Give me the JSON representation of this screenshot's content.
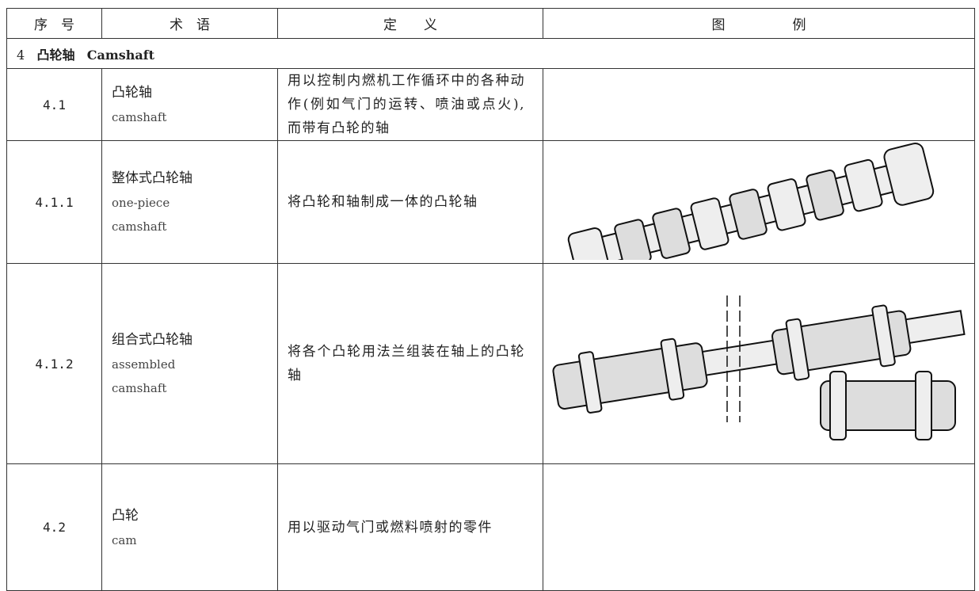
{
  "table": {
    "header": [
      "序　号",
      "术　语",
      "定　　义",
      "图　　　　　例"
    ],
    "section": {
      "number": "4",
      "zh": "凸轮轴",
      "en": "Camshaft"
    },
    "rows": [
      {
        "number": "4.1",
        "term_zh": "凸轮轴",
        "term_en": "camshaft",
        "definition": "用以控制内燃机工作循环中的各种动作(例如气门的运转、喷油或点火),而带有凸轮的轴"
      },
      {
        "number": "4.1.1",
        "term_zh": "整体式凸轮轴",
        "term_en": "one-piece camshaft",
        "definition": "将凸轮和轴制成一体的凸轮轴"
      },
      {
        "number": "4.1.2",
        "term_zh": "组合式凸轮轴",
        "term_en": "assembled camshaft",
        "definition": "将各个凸轮用法兰组装在轴上的凸轮轴"
      },
      {
        "number": "4.2",
        "term_zh": "凸轮",
        "term_en": "cam",
        "definition": "用以驱动气门或燃料喷射的零件"
      }
    ]
  }
}
